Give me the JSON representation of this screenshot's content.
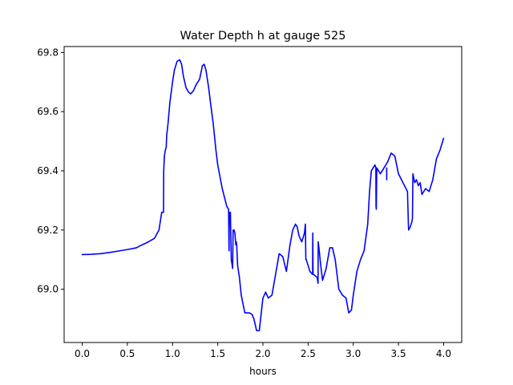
{
  "chart_data": {
    "type": "line",
    "title": "Water Depth h at gauge 525",
    "xlabel": "hours",
    "ylabel": "",
    "xlim": [
      -0.2,
      4.2
    ],
    "ylim": [
      68.82,
      69.82
    ],
    "xticks": [
      0.0,
      0.5,
      1.0,
      1.5,
      2.0,
      2.5,
      3.0,
      3.5,
      4.0
    ],
    "xtick_labels": [
      "0.0",
      "0.5",
      "1.0",
      "1.5",
      "2.0",
      "2.5",
      "3.0",
      "3.5",
      "4.0"
    ],
    "yticks": [
      69.0,
      69.2,
      69.4,
      69.6,
      69.8
    ],
    "ytick_labels": [
      "69.0",
      "69.2",
      "69.4",
      "69.6",
      "69.8"
    ],
    "grid": false,
    "legend": "none",
    "series": [
      {
        "color": "#0000ff",
        "x": [
          0.0,
          0.1,
          0.2,
          0.3,
          0.4,
          0.5,
          0.6,
          0.65,
          0.7,
          0.75,
          0.8,
          0.85,
          0.88,
          0.9,
          0.902,
          0.91,
          0.92,
          0.93,
          0.935,
          0.95,
          0.97,
          1.0,
          1.02,
          1.05,
          1.08,
          1.1,
          1.12,
          1.15,
          1.18,
          1.2,
          1.23,
          1.26,
          1.3,
          1.33,
          1.35,
          1.37,
          1.38,
          1.4,
          1.42,
          1.45,
          1.48,
          1.5,
          1.55,
          1.6,
          1.62,
          1.625,
          1.628,
          1.635,
          1.64,
          1.65,
          1.66,
          1.665,
          1.67,
          1.68,
          1.69,
          1.7,
          1.705,
          1.71,
          1.72,
          1.74,
          1.76,
          1.8,
          1.85,
          1.88,
          1.9,
          1.93,
          1.96,
          2.0,
          2.03,
          2.06,
          2.1,
          2.14,
          2.18,
          2.22,
          2.26,
          2.3,
          2.33,
          2.36,
          2.38,
          2.4,
          2.43,
          2.46,
          2.47,
          2.475,
          2.48,
          2.5,
          2.52,
          2.55,
          2.552,
          2.555,
          2.56,
          2.6,
          2.61,
          2.612,
          2.62,
          2.64,
          2.66,
          2.7,
          2.74,
          2.77,
          2.8,
          2.84,
          2.88,
          2.92,
          2.95,
          2.98,
          3.0,
          3.04,
          3.08,
          3.12,
          3.16,
          3.18,
          3.2,
          3.24,
          3.25,
          3.252,
          3.255,
          3.26,
          3.3,
          3.34,
          3.38,
          3.42,
          3.46,
          3.5,
          3.55,
          3.6,
          3.61,
          3.612,
          3.63,
          3.65,
          3.655,
          3.66,
          3.68,
          3.7,
          3.72,
          3.74,
          3.76,
          3.8,
          3.84,
          3.88,
          3.92,
          3.96,
          4.0
        ],
        "y": [
          69.117,
          69.118,
          69.12,
          69.124,
          69.129,
          69.134,
          69.14,
          69.148,
          69.155,
          69.163,
          69.172,
          69.2,
          69.26,
          69.26,
          69.4,
          69.45,
          69.47,
          69.48,
          69.52,
          69.56,
          69.63,
          69.7,
          69.74,
          69.77,
          69.775,
          69.76,
          69.72,
          69.68,
          69.665,
          69.66,
          69.67,
          69.69,
          69.71,
          69.755,
          69.76,
          69.74,
          69.72,
          69.68,
          69.63,
          69.56,
          69.47,
          69.42,
          69.34,
          69.28,
          69.27,
          69.13,
          69.26,
          69.25,
          69.26,
          69.1,
          69.08,
          69.07,
          69.2,
          69.2,
          69.19,
          69.15,
          69.16,
          69.15,
          69.08,
          69.04,
          68.98,
          68.92,
          68.92,
          68.915,
          68.9,
          68.86,
          68.86,
          68.97,
          68.99,
          68.97,
          68.98,
          69.05,
          69.12,
          69.11,
          69.06,
          69.15,
          69.2,
          69.22,
          69.21,
          69.18,
          69.16,
          69.19,
          69.22,
          69.1,
          69.1,
          69.08,
          69.06,
          69.05,
          69.19,
          69.05,
          69.05,
          69.04,
          69.02,
          69.16,
          69.14,
          69.08,
          69.03,
          69.07,
          69.14,
          69.14,
          69.1,
          69.0,
          68.98,
          68.97,
          68.92,
          68.93,
          68.98,
          69.06,
          69.1,
          69.13,
          69.22,
          69.33,
          69.4,
          69.42,
          69.41,
          69.28,
          69.27,
          69.41,
          69.39,
          69.41,
          69.43,
          69.46,
          69.45,
          69.39,
          69.36,
          69.33,
          69.22,
          69.2,
          69.21,
          69.23,
          69.24,
          69.39,
          69.36,
          69.37,
          69.35,
          69.36,
          69.32,
          69.34,
          69.33,
          69.37,
          69.44,
          69.47,
          69.51
        ]
      },
      {
        "color": "#0000ff",
        "x": [
          3.37,
          3.37
        ],
        "y": [
          69.37,
          69.41
        ]
      }
    ]
  }
}
